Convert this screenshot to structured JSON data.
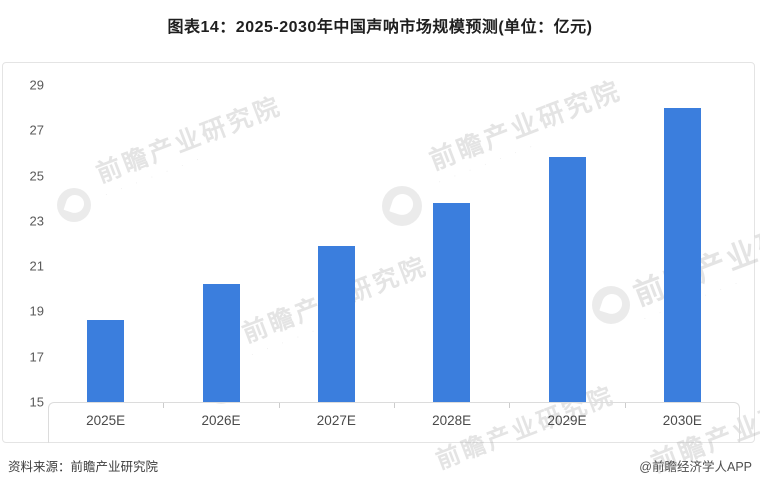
{
  "title": "图表14：2025-2030年中国声呐市场规模预测(单位：亿元)",
  "footer": {
    "source": "资料来源：前瞻产业研究院",
    "credit": "@前瞻经济学人APP"
  },
  "watermark": {
    "text": "前瞻产业研究院",
    "logo_name": "qianzhan-logo"
  },
  "colors": {
    "bar": "#3b7edd",
    "axis_line": "#dcdcdc",
    "tick_label": "#595959",
    "border": "#e4e4e4"
  },
  "chart_data": {
    "type": "bar",
    "title": "图表14：2025-2030年中国声呐市场规模预测(单位：亿元)",
    "categories": [
      "2025E",
      "2026E",
      "2027E",
      "2028E",
      "2029E",
      "2030E"
    ],
    "values": [
      18.6,
      20.2,
      21.9,
      23.8,
      25.8,
      28.0
    ],
    "xlabel": "",
    "ylabel": "亿元",
    "ylim": [
      15,
      29
    ],
    "yticks": [
      15,
      17,
      19,
      21,
      23,
      25,
      27,
      29
    ],
    "grid": false,
    "legend": null,
    "bar_color": "#3b7edd"
  }
}
